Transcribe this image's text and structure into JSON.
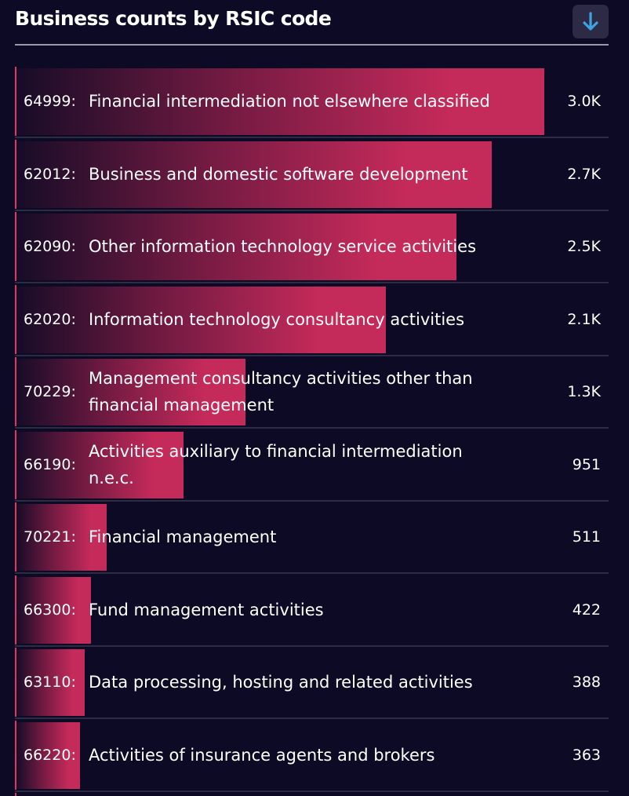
{
  "header": {
    "title": "Business counts by RSIC code",
    "sort_button_icon": "arrow-down-icon"
  },
  "colors": {
    "background": "#0c0a24",
    "bar": "#c42a5a",
    "accent_border": "#e0355f",
    "sort_icon": "#3ea3e0"
  },
  "chart_data": {
    "type": "bar",
    "orientation": "horizontal",
    "title": "Business counts by RSIC code",
    "categories": [
      "64999:",
      "62012:",
      "62090:",
      "62020:",
      "70229:",
      "66190:",
      "70221:",
      "66300:",
      "63110:",
      "66220:"
    ],
    "labels": [
      "Financial intermediation not elsewhere classified",
      "Business and domestic software development",
      "Other information technology service activities",
      "Information technology consultancy activities",
      "Management consultancy activities other than financial management",
      "Activities auxiliary to financial intermediation n.e.c.",
      "Financial management",
      "Fund management activities",
      "Data processing, hosting and related activities",
      "Activities of insurance agents and brokers"
    ],
    "values": [
      3000,
      2700,
      2500,
      2100,
      1300,
      951,
      511,
      422,
      388,
      363
    ],
    "value_labels": [
      "3.0K",
      "2.7K",
      "2.5K",
      "2.1K",
      "1.3K",
      "951",
      "511",
      "422",
      "388",
      "363"
    ],
    "xlim": [
      0,
      3000
    ],
    "grid": false,
    "legend": "none"
  }
}
